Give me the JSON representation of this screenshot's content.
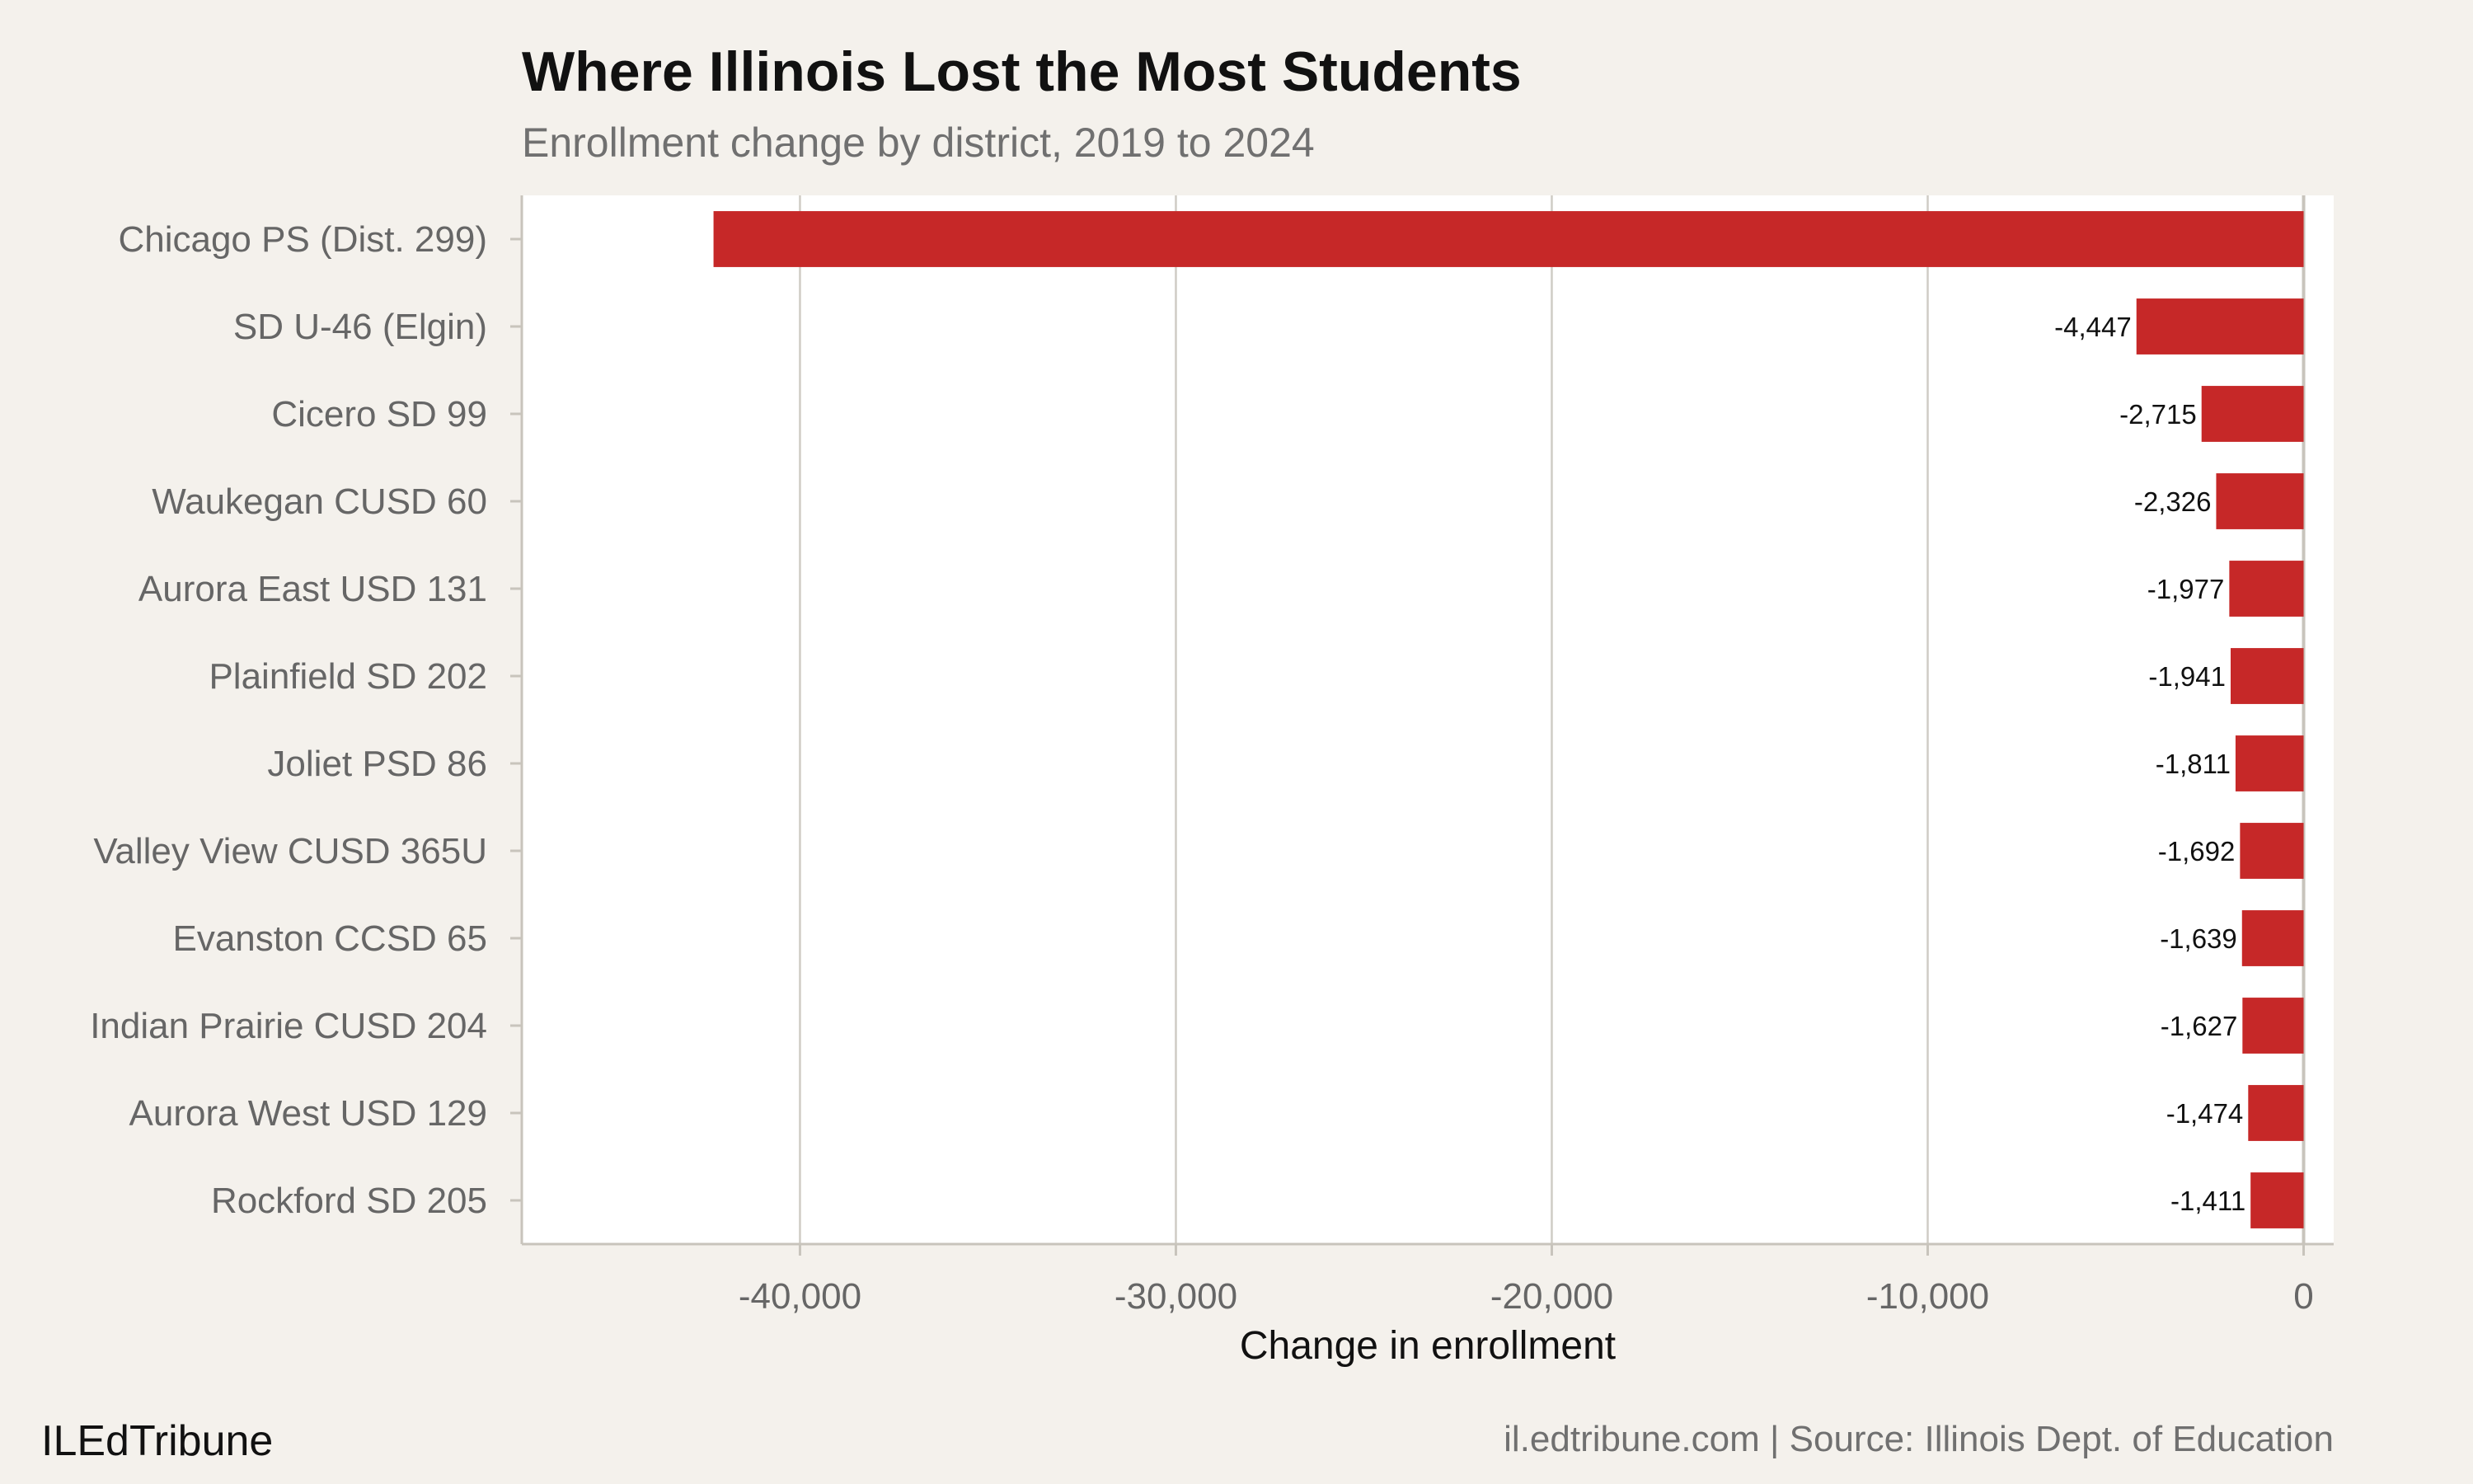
{
  "chart_data": {
    "type": "bar",
    "orientation": "horizontal",
    "title": "Where Illinois Lost the Most Students",
    "subtitle": "Enrollment change by district, 2019 to 2024",
    "xlabel": "Change in enrollment",
    "ylabel": "",
    "xlim": [
      -47400,
      800
    ],
    "xticks": [
      -40000,
      -30000,
      -20000,
      -10000,
      0
    ],
    "xtick_labels": [
      "-40,000",
      "-30,000",
      "-20,000",
      "-10,000",
      "0"
    ],
    "grid": "vertical",
    "bar_color": "#c62828",
    "categories": [
      "Chicago PS (Dist. 299)",
      "SD U-46 (Elgin)",
      "Cicero SD 99",
      "Waukegan CUSD 60",
      "Aurora East USD 131",
      "Plainfield SD 202",
      "Joliet PSD 86",
      "Valley View CUSD 365U",
      "Evanston CCSD 65",
      "Indian Prairie CUSD 204",
      "Aurora West USD 129",
      "Rockford SD 205"
    ],
    "values": [
      -42300,
      -4447,
      -2715,
      -2326,
      -1977,
      -1941,
      -1811,
      -1692,
      -1639,
      -1627,
      -1474,
      -1411
    ],
    "data_labels": [
      "",
      "-4,447",
      "-2,715",
      "-2,326",
      "-1,977",
      "-1,941",
      "-1,811",
      "-1,692",
      "-1,639",
      "-1,627",
      "-1,474",
      "-1,411"
    ]
  },
  "footer": {
    "brand": "ILEdTribune",
    "source": "il.edtribune.com | Source: Illinois Dept. of Education"
  }
}
